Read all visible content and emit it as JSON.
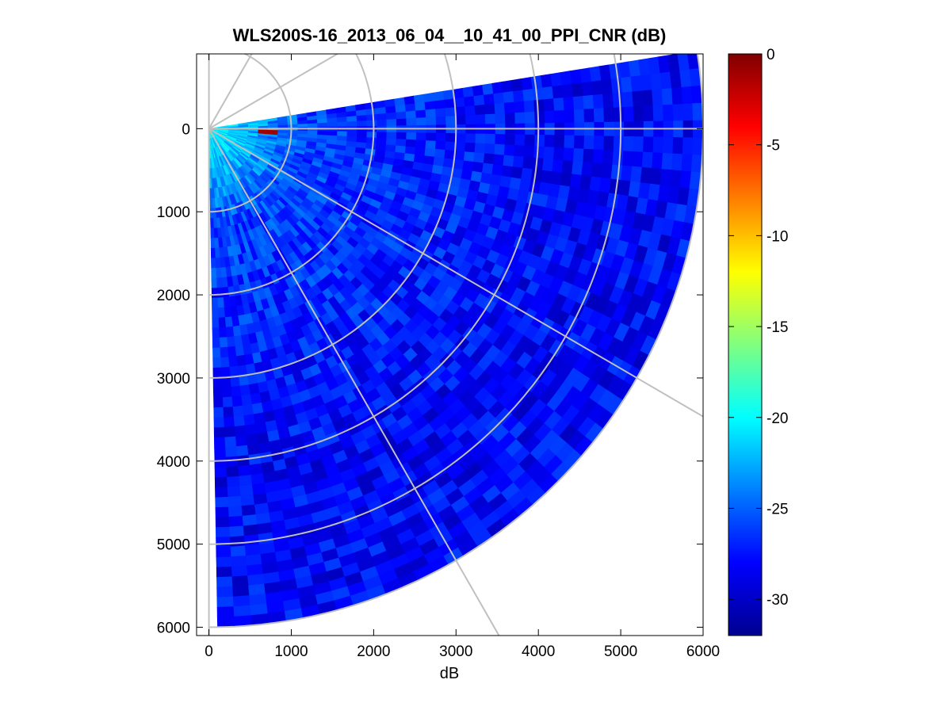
{
  "chart_data": {
    "type": "heatmap",
    "subtype": "polar-ppi-sector",
    "title": "WLS200S-16_2013_06_04__10_41_00_PPI_CNR (dB)",
    "xlabel": "dB",
    "ylabel": "",
    "xlim": [
      -150,
      6000
    ],
    "ylim": [
      6100,
      -900
    ],
    "y_axis_direction": "down",
    "x_ticks": [
      0,
      1000,
      2000,
      3000,
      4000,
      5000,
      6000
    ],
    "y_ticks": [
      0,
      1000,
      2000,
      3000,
      4000,
      5000,
      6000
    ],
    "sector": {
      "max_range": 6000,
      "start_angle_deg": -89,
      "end_angle_deg": 8
    },
    "polar_grid": {
      "range_rings": [
        1000,
        2000,
        3000,
        4000,
        5000,
        6000
      ],
      "spoke_angles_deg": [
        -90,
        -60,
        -30,
        0,
        30,
        60,
        90
      ],
      "color": "#c0c0c0"
    },
    "colorbar": {
      "colormap": "jet",
      "clim": [
        -32,
        0
      ],
      "ticks": [
        0,
        -5,
        -10,
        -15,
        -20,
        -25,
        -30
      ]
    },
    "field_description": {
      "near_range_value_db": -20,
      "mid_range_value_db": -26,
      "far_range_value_db": -28,
      "hot_spot": {
        "range": 700,
        "angle_deg": -3,
        "value_db": -1
      }
    }
  }
}
